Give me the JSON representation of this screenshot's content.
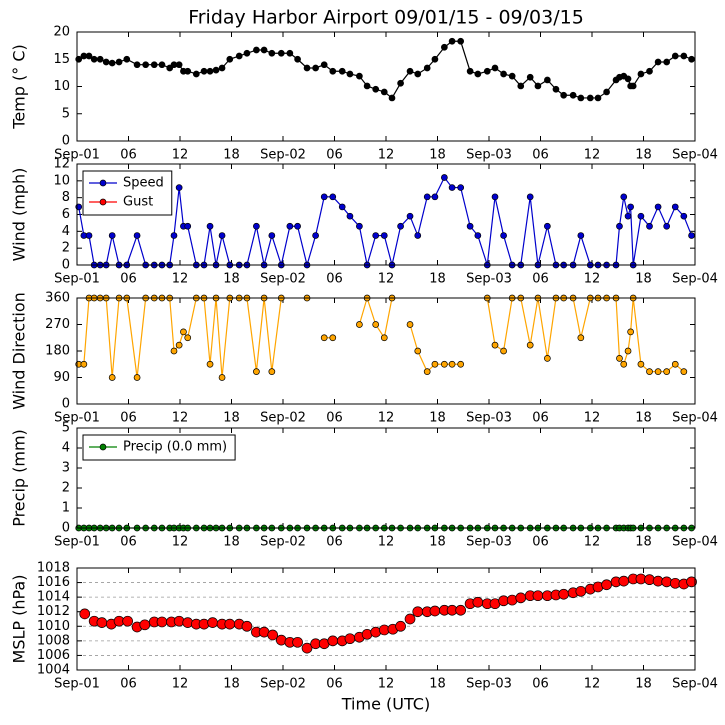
{
  "title": "Friday Harbor Airport 09/01/15 - 09/03/15",
  "chart_data": [
    {
      "type": "line",
      "ylabel": "Temp (° C)",
      "color": "#000000",
      "x": [
        0.2,
        0.8,
        1.4,
        2.0,
        2.7,
        3.4,
        4.1,
        4.9,
        5.8,
        7.0,
        8.0,
        9.0,
        9.9,
        10.8,
        11.3,
        11.9,
        12.4,
        12.9,
        13.9,
        14.8,
        15.5,
        16.2,
        16.9,
        17.8,
        18.9,
        19.8,
        20.9,
        21.8,
        22.7,
        23.8,
        24.8,
        25.7,
        26.8,
        27.8,
        28.8,
        29.8,
        30.9,
        31.8,
        32.9,
        33.8,
        34.8,
        35.8,
        36.7,
        37.7,
        38.8,
        39.7,
        40.8,
        41.7,
        42.8,
        43.7,
        44.7,
        45.8,
        46.7,
        47.8,
        48.7,
        49.7,
        50.7,
        51.7,
        52.8,
        53.7,
        54.8,
        55.8,
        56.7,
        57.8,
        58.7,
        59.8,
        60.7,
        61.7,
        62.8,
        63.2,
        63.7,
        64.2,
        64.5,
        64.8,
        65.7,
        66.7,
        67.7,
        68.7,
        69.7,
        70.7,
        71.6
      ],
      "values": [
        15.0,
        15.6,
        15.6,
        15.0,
        15.0,
        14.5,
        14.3,
        14.5,
        15.0,
        14.0,
        14.0,
        14.0,
        14.0,
        13.4,
        14.0,
        14.0,
        12.8,
        12.8,
        12.3,
        12.8,
        12.8,
        13.0,
        13.4,
        15.0,
        15.6,
        16.1,
        16.7,
        16.7,
        16.1,
        16.1,
        16.1,
        15.0,
        13.4,
        13.4,
        14.0,
        12.8,
        12.8,
        12.3,
        11.9,
        10.1,
        9.5,
        9.0,
        7.9,
        10.6,
        12.8,
        12.3,
        13.4,
        15.0,
        17.2,
        18.3,
        18.3,
        12.8,
        12.3,
        12.8,
        13.4,
        12.3,
        11.9,
        10.1,
        11.7,
        10.1,
        11.2,
        9.5,
        8.4,
        8.4,
        7.9,
        7.9,
        7.9,
        9.0,
        11.2,
        11.7,
        11.9,
        11.4,
        10.1,
        10.1,
        12.3,
        12.8,
        14.5,
        14.5,
        15.6,
        15.6,
        15.0
      ],
      "xlim": [
        0,
        72
      ],
      "xticks": [
        {
          "value": 0,
          "label": "Sep-01"
        },
        {
          "value": 6,
          "label": "06"
        },
        12,
        18,
        {
          "value": 24,
          "label": "Sep-02"
        },
        {
          "value": 30,
          "label": "06"
        },
        {
          "value": 36,
          "label": "12"
        },
        {
          "value": 42,
          "label": "18"
        },
        {
          "value": 48,
          "label": "Sep-03"
        },
        {
          "value": 54,
          "label": "06"
        },
        {
          "value": 60,
          "label": "12"
        },
        {
          "value": 66,
          "label": "18"
        },
        {
          "value": 72,
          "label": "Sep-04"
        }
      ],
      "ylim": [
        0,
        20
      ],
      "yticks": [
        0,
        5,
        10,
        15,
        20
      ]
    },
    {
      "type": "line",
      "ylabel": "Wind (mph)",
      "legend": "upper left",
      "x": [
        0.2,
        0.8,
        1.4,
        2.0,
        2.7,
        3.4,
        4.1,
        4.9,
        5.8,
        7.0,
        8.0,
        9.0,
        9.9,
        10.8,
        11.3,
        11.9,
        12.4,
        12.9,
        13.9,
        14.8,
        15.5,
        16.2,
        16.9,
        17.8,
        18.9,
        19.8,
        20.9,
        21.8,
        22.7,
        23.8,
        24.8,
        25.7,
        26.8,
        27.8,
        28.8,
        29.8,
        30.9,
        31.8,
        32.9,
        33.8,
        34.8,
        35.8,
        36.7,
        37.7,
        38.8,
        39.7,
        40.8,
        41.7,
        42.8,
        43.7,
        44.7,
        45.8,
        46.7,
        47.8,
        48.7,
        49.7,
        50.7,
        51.7,
        52.8,
        53.7,
        54.8,
        55.8,
        56.7,
        57.8,
        58.7,
        59.8,
        60.7,
        61.7,
        62.8,
        63.2,
        63.7,
        64.2,
        64.5,
        64.8,
        65.7,
        66.7,
        67.7,
        68.7,
        69.7,
        70.7,
        71.6
      ],
      "series": [
        {
          "name": "Speed",
          "color": "#0000cc",
          "values": [
            6.9,
            3.5,
            3.5,
            0,
            0,
            0,
            3.5,
            0,
            0,
            3.5,
            0,
            0,
            0,
            0,
            3.5,
            9.2,
            4.6,
            4.6,
            0,
            0,
            4.6,
            0,
            3.5,
            0,
            0,
            0,
            4.6,
            0,
            3.5,
            0,
            4.6,
            4.6,
            0,
            3.5,
            8.1,
            8.1,
            6.9,
            5.8,
            4.6,
            0,
            3.5,
            3.5,
            0,
            4.6,
            5.8,
            3.5,
            8.1,
            8.1,
            10.4,
            9.2,
            9.2,
            4.6,
            3.5,
            0,
            8.1,
            3.5,
            0,
            0,
            8.1,
            0,
            4.6,
            0,
            0,
            0,
            3.5,
            0,
            0,
            0,
            0,
            4.6,
            8.1,
            5.8,
            6.9,
            0,
            5.8,
            4.6,
            6.9,
            4.6,
            6.9,
            5.8,
            3.5
          ]
        },
        {
          "name": "Gust",
          "color": "#ff0000",
          "values": [
            null,
            null,
            null,
            null,
            null,
            null,
            null,
            null,
            null,
            null,
            null,
            null,
            null,
            null,
            null,
            null,
            null,
            null,
            null,
            null,
            null,
            null,
            null,
            null,
            null,
            null,
            null,
            null,
            null,
            null,
            null,
            null,
            null,
            null,
            null,
            null,
            null,
            null,
            null,
            null,
            null,
            null,
            null,
            null,
            null,
            null,
            null,
            null,
            null,
            null,
            null,
            null,
            null,
            null,
            null,
            null,
            null,
            null,
            null,
            null,
            null,
            null,
            null,
            null,
            null,
            null,
            null,
            null,
            null,
            null,
            null,
            null,
            null,
            null,
            null,
            null,
            null,
            null,
            null,
            null,
            null
          ]
        }
      ],
      "xlim": [
        0,
        72
      ],
      "xticks": [
        {
          "value": 0,
          "label": "Sep-01"
        },
        {
          "value": 6,
          "label": "06"
        },
        12,
        18,
        {
          "value": 24,
          "label": "Sep-02"
        },
        {
          "value": 30,
          "label": "06"
        },
        {
          "value": 36,
          "label": "12"
        },
        {
          "value": 42,
          "label": "18"
        },
        {
          "value": 48,
          "label": "Sep-03"
        },
        {
          "value": 54,
          "label": "06"
        },
        {
          "value": 60,
          "label": "12"
        },
        {
          "value": 66,
          "label": "18"
        },
        {
          "value": 72,
          "label": "Sep-04"
        }
      ],
      "ylim": [
        0,
        12
      ],
      "yticks": [
        0,
        2,
        4,
        6,
        8,
        10,
        12
      ]
    },
    {
      "type": "line",
      "ylabel": "Wind Direction",
      "color": "#ffa500",
      "x": [
        0.2,
        0.8,
        1.4,
        2.0,
        2.7,
        3.4,
        4.1,
        4.9,
        5.8,
        7.0,
        8.0,
        9.0,
        9.9,
        10.8,
        11.3,
        11.9,
        12.4,
        12.9,
        13.9,
        14.8,
        15.5,
        16.2,
        16.9,
        17.8,
        18.9,
        19.8,
        20.9,
        21.8,
        22.7,
        23.8,
        24.8,
        25.7,
        26.8,
        27.8,
        28.8,
        29.8,
        30.9,
        31.8,
        32.9,
        33.8,
        34.8,
        35.8,
        36.7,
        37.7,
        38.8,
        39.7,
        40.8,
        41.7,
        42.8,
        43.7,
        44.7,
        45.8,
        46.7,
        47.8,
        48.7,
        49.7,
        50.7,
        51.7,
        52.8,
        53.7,
        54.8,
        55.8,
        56.7,
        57.8,
        58.7,
        59.8,
        60.7,
        61.7,
        62.8,
        63.2,
        63.7,
        64.2,
        64.5,
        64.8,
        65.7,
        66.7,
        67.7,
        68.7,
        69.7,
        70.7,
        71.6
      ],
      "values": [
        135,
        135,
        360,
        360,
        360,
        360,
        90,
        360,
        360,
        90,
        360,
        360,
        360,
        360,
        180,
        200,
        245,
        225,
        360,
        360,
        135,
        360,
        90,
        360,
        360,
        360,
        110,
        360,
        110,
        360,
        null,
        null,
        360,
        null,
        225,
        225,
        null,
        null,
        270,
        360,
        270,
        225,
        360,
        null,
        270,
        180,
        110,
        135,
        135,
        135,
        135,
        null,
        null,
        360,
        200,
        180,
        360,
        360,
        200,
        360,
        155,
        360,
        360,
        360,
        225,
        360,
        360,
        360,
        360,
        155,
        135,
        180,
        245,
        360,
        135,
        110,
        110,
        110,
        135,
        110,
        null
      ],
      "xlim": [
        0,
        72
      ],
      "xticks": [
        {
          "value": 0,
          "label": "Sep-01"
        },
        {
          "value": 6,
          "label": "06"
        },
        12,
        18,
        {
          "value": 24,
          "label": "Sep-02"
        },
        {
          "value": 30,
          "label": "06"
        },
        {
          "value": 36,
          "label": "12"
        },
        {
          "value": 42,
          "label": "18"
        },
        {
          "value": 48,
          "label": "Sep-03"
        },
        {
          "value": 54,
          "label": "06"
        },
        {
          "value": 60,
          "label": "12"
        },
        {
          "value": 66,
          "label": "18"
        },
        {
          "value": 72,
          "label": "Sep-04"
        }
      ],
      "ylim": [
        0,
        360
      ],
      "yticks": [
        0,
        90,
        180,
        270,
        360
      ]
    },
    {
      "type": "line",
      "ylabel": "Precip (mm)",
      "legend": "upper left",
      "x": [
        0.2,
        0.8,
        1.4,
        2.0,
        2.7,
        3.4,
        4.1,
        4.9,
        5.8,
        7.0,
        8.0,
        9.0,
        9.9,
        10.8,
        11.3,
        11.9,
        12.4,
        12.9,
        13.9,
        14.8,
        15.5,
        16.2,
        16.9,
        17.8,
        18.9,
        19.8,
        20.9,
        21.8,
        22.7,
        23.8,
        24.8,
        25.7,
        26.8,
        27.8,
        28.8,
        29.8,
        30.9,
        31.8,
        32.9,
        33.8,
        34.8,
        35.8,
        36.7,
        37.7,
        38.8,
        39.7,
        40.8,
        41.7,
        42.8,
        43.7,
        44.7,
        45.8,
        46.7,
        47.8,
        48.7,
        49.7,
        50.7,
        51.7,
        52.8,
        53.7,
        54.8,
        55.8,
        56.7,
        57.8,
        58.7,
        59.8,
        60.7,
        61.7,
        62.8,
        63.2,
        63.7,
        64.2,
        64.5,
        64.8,
        65.7,
        66.7,
        67.7,
        68.7,
        69.7,
        70.7,
        71.6
      ],
      "series": [
        {
          "name": "Precip (0.0 mm)",
          "color": "#008000",
          "values": [
            0,
            0,
            0,
            0,
            0,
            0,
            0,
            0,
            0,
            0,
            0,
            0,
            0,
            0,
            0,
            0,
            0,
            0,
            0,
            0,
            0,
            0,
            0,
            0,
            0,
            0,
            0,
            0,
            0,
            0,
            0,
            0,
            0,
            0,
            0,
            0,
            0,
            0,
            0,
            0,
            0,
            0,
            0,
            0,
            0,
            0,
            0,
            0,
            0,
            0,
            0,
            0,
            0,
            0,
            0,
            0,
            0,
            0,
            0,
            0,
            0,
            0,
            0,
            0,
            0,
            0,
            0,
            0,
            0,
            0,
            0,
            0,
            0,
            0,
            0,
            0,
            0,
            0,
            0,
            0,
            0
          ]
        }
      ],
      "xlim": [
        0,
        72
      ],
      "xticks": [
        {
          "value": 0,
          "label": "Sep-01"
        },
        {
          "value": 6,
          "label": "06"
        },
        12,
        18,
        {
          "value": 24,
          "label": "Sep-02"
        },
        {
          "value": 30,
          "label": "06"
        },
        {
          "value": 36,
          "label": "12"
        },
        {
          "value": 42,
          "label": "18"
        },
        {
          "value": 48,
          "label": "Sep-03"
        },
        {
          "value": 54,
          "label": "06"
        },
        {
          "value": 60,
          "label": "12"
        },
        {
          "value": 66,
          "label": "18"
        },
        {
          "value": 72,
          "label": "Sep-04"
        }
      ],
      "ylim": [
        0,
        5
      ],
      "yticks": [
        0,
        1,
        2,
        3,
        4,
        5
      ]
    },
    {
      "type": "scatter",
      "ylabel": "MSLP (hPa)",
      "xlabel": "Time (UTC)",
      "color": "#ff0000",
      "line": false,
      "grid": true,
      "x": [
        0.9,
        2.0,
        2.9,
        4.0,
        4.9,
        5.9,
        7.0,
        7.9,
        9.0,
        9.9,
        11.0,
        11.9,
        12.9,
        13.9,
        14.8,
        15.8,
        16.9,
        17.8,
        18.9,
        19.8,
        20.9,
        21.8,
        22.8,
        23.8,
        24.8,
        25.7,
        26.8,
        27.8,
        28.8,
        29.8,
        30.9,
        31.8,
        32.9,
        33.8,
        34.8,
        35.8,
        36.8,
        37.7,
        38.8,
        39.7,
        40.8,
        41.7,
        42.8,
        43.7,
        44.7,
        45.8,
        46.7,
        47.8,
        48.7,
        49.7,
        50.7,
        51.7,
        52.8,
        53.7,
        54.8,
        55.8,
        56.7,
        57.8,
        58.7,
        59.8,
        60.7,
        61.7,
        62.8,
        63.7,
        64.8,
        65.7,
        66.7,
        67.7,
        68.7,
        69.7,
        70.7,
        71.6
      ],
      "values": [
        1011.7,
        1010.7,
        1010.5,
        1010.3,
        1010.7,
        1010.7,
        1009.9,
        1010.2,
        1010.6,
        1010.6,
        1010.6,
        1010.7,
        1010.5,
        1010.3,
        1010.3,
        1010.5,
        1010.3,
        1010.3,
        1010.3,
        1010.0,
        1009.2,
        1009.2,
        1008.8,
        1008.1,
        1007.8,
        1007.8,
        1007.0,
        1007.6,
        1007.6,
        1008.0,
        1008.0,
        1008.3,
        1008.5,
        1008.9,
        1009.2,
        1009.5,
        1009.6,
        1010.0,
        1011.0,
        1012.0,
        1012.0,
        1012.1,
        1012.2,
        1012.2,
        1012.2,
        1013.1,
        1013.3,
        1013.1,
        1013.1,
        1013.5,
        1013.6,
        1013.9,
        1014.2,
        1014.2,
        1014.2,
        1014.3,
        1014.4,
        1014.6,
        1014.8,
        1015.1,
        1015.4,
        1015.7,
        1016.1,
        1016.2,
        1016.5,
        1016.5,
        1016.4,
        1016.2,
        1016.1,
        1015.9,
        1015.8,
        1016.1
      ],
      "xlim": [
        0,
        72
      ],
      "xticks": [
        {
          "value": 0,
          "label": "Sep-01"
        },
        {
          "value": 6,
          "label": "06"
        },
        12,
        18,
        {
          "value": 24,
          "label": "Sep-02"
        },
        {
          "value": 30,
          "label": "06"
        },
        {
          "value": 36,
          "label": "12"
        },
        {
          "value": 42,
          "label": "18"
        },
        {
          "value": 48,
          "label": "Sep-03"
        },
        {
          "value": 54,
          "label": "06"
        },
        {
          "value": 60,
          "label": "12"
        },
        {
          "value": 66,
          "label": "18"
        },
        {
          "value": 72,
          "label": "Sep-04"
        }
      ],
      "ylim": [
        1004,
        1018
      ],
      "yticks": [
        1004,
        1006,
        1008,
        1010,
        1012,
        1014,
        1016,
        1018
      ]
    }
  ]
}
